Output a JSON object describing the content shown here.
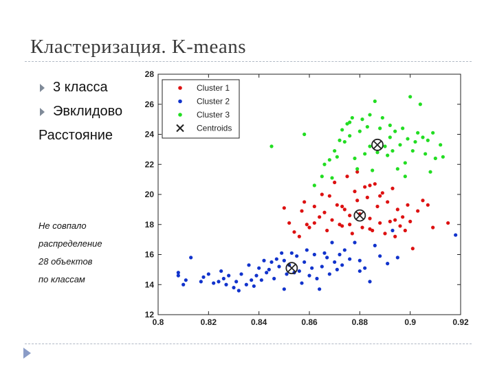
{
  "slide": {
    "title": "Кластеризация. K-means",
    "bullets": [
      "3 класса",
      "Эвклидово"
    ],
    "continuation": "Расстояние",
    "note_lines": [
      "Не совпало",
      "распределение",
      "28 объектов",
      "по классам"
    ]
  },
  "colors": {
    "cluster1": "#dd1111",
    "cluster2": "#1133cc",
    "cluster3": "#22dd22",
    "centroid": "#222222",
    "bullet_arrow": "#7f8a98"
  },
  "icons": {
    "bullet": "triangle-right-icon",
    "slide_nav": "triangle-right-icon"
  },
  "chart_data": {
    "type": "scatter",
    "xlim": [
      0.8,
      0.92
    ],
    "ylim": [
      12,
      28
    ],
    "xticks": [
      "0.8",
      "0.82",
      "0.84",
      "0.86",
      "0.88",
      "0.9",
      "0.92"
    ],
    "yticks": [
      "12",
      "14",
      "16",
      "18",
      "20",
      "22",
      "24",
      "26",
      "28"
    ],
    "legend_position": "top-left",
    "series": [
      {
        "name": "Cluster 1",
        "color": "#dd1111",
        "points": [
          [
            0.85,
            19.1
          ],
          [
            0.852,
            18.1
          ],
          [
            0.854,
            17.5
          ],
          [
            0.856,
            17.2
          ],
          [
            0.857,
            18.9
          ],
          [
            0.858,
            19.5
          ],
          [
            0.859,
            18.0
          ],
          [
            0.86,
            17.8
          ],
          [
            0.862,
            19.2
          ],
          [
            0.864,
            18.5
          ],
          [
            0.865,
            20.0
          ],
          [
            0.866,
            18.8
          ],
          [
            0.867,
            17.6
          ],
          [
            0.868,
            19.9
          ],
          [
            0.869,
            18.3
          ],
          [
            0.87,
            20.8
          ],
          [
            0.871,
            19.3
          ],
          [
            0.872,
            18.0
          ],
          [
            0.873,
            17.9
          ],
          [
            0.874,
            19.0
          ],
          [
            0.875,
            21.2
          ],
          [
            0.876,
            18.6
          ],
          [
            0.877,
            17.4
          ],
          [
            0.878,
            20.2
          ],
          [
            0.879,
            19.6
          ],
          [
            0.88,
            18.7
          ],
          [
            0.881,
            17.8
          ],
          [
            0.882,
            20.5
          ],
          [
            0.883,
            19.8
          ],
          [
            0.884,
            18.4
          ],
          [
            0.885,
            17.6
          ],
          [
            0.886,
            20.7
          ],
          [
            0.887,
            19.2
          ],
          [
            0.888,
            18.1
          ],
          [
            0.889,
            20.1
          ],
          [
            0.89,
            17.4
          ],
          [
            0.891,
            19.5
          ],
          [
            0.892,
            18.2
          ],
          [
            0.893,
            20.4
          ],
          [
            0.894,
            17.2
          ],
          [
            0.895,
            19.0
          ],
          [
            0.896,
            17.9
          ],
          [
            0.897,
            18.5
          ],
          [
            0.898,
            17.6
          ],
          [
            0.899,
            19.3
          ],
          [
            0.9,
            18.2
          ],
          [
            0.901,
            16.4
          ],
          [
            0.903,
            18.9
          ],
          [
            0.905,
            19.6
          ],
          [
            0.907,
            19.3
          ],
          [
            0.909,
            17.8
          ],
          [
            0.915,
            18.1
          ],
          [
            0.884,
            20.6
          ],
          [
            0.879,
            21.5
          ],
          [
            0.873,
            19.2
          ],
          [
            0.862,
            18.1
          ],
          [
            0.876,
            18.0
          ],
          [
            0.884,
            17.7
          ],
          [
            0.888,
            19.9
          ],
          [
            0.894,
            18.3
          ]
        ]
      },
      {
        "name": "Cluster 2",
        "color": "#1133cc",
        "points": [
          [
            0.808,
            14.6
          ],
          [
            0.808,
            14.8
          ],
          [
            0.81,
            14.0
          ],
          [
            0.811,
            14.3
          ],
          [
            0.813,
            15.8
          ],
          [
            0.817,
            14.2
          ],
          [
            0.818,
            14.5
          ],
          [
            0.82,
            14.7
          ],
          [
            0.822,
            14.1
          ],
          [
            0.824,
            14.2
          ],
          [
            0.825,
            14.9
          ],
          [
            0.826,
            14.4
          ],
          [
            0.827,
            14.0
          ],
          [
            0.828,
            14.6
          ],
          [
            0.83,
            13.8
          ],
          [
            0.831,
            14.2
          ],
          [
            0.832,
            13.6
          ],
          [
            0.833,
            14.7
          ],
          [
            0.835,
            14.0
          ],
          [
            0.836,
            15.3
          ],
          [
            0.837,
            14.3
          ],
          [
            0.838,
            13.9
          ],
          [
            0.839,
            14.6
          ],
          [
            0.84,
            15.1
          ],
          [
            0.841,
            14.3
          ],
          [
            0.842,
            15.6
          ],
          [
            0.843,
            14.8
          ],
          [
            0.844,
            15.0
          ],
          [
            0.845,
            15.5
          ],
          [
            0.846,
            14.4
          ],
          [
            0.847,
            15.7
          ],
          [
            0.848,
            15.2
          ],
          [
            0.849,
            16.1
          ],
          [
            0.85,
            15.6
          ],
          [
            0.851,
            14.7
          ],
          [
            0.852,
            15.3
          ],
          [
            0.853,
            16.1
          ],
          [
            0.854,
            14.8
          ],
          [
            0.855,
            15.9
          ],
          [
            0.856,
            14.9
          ],
          [
            0.857,
            14.1
          ],
          [
            0.858,
            15.5
          ],
          [
            0.859,
            16.3
          ],
          [
            0.86,
            14.6
          ],
          [
            0.861,
            15.1
          ],
          [
            0.862,
            16.0
          ],
          [
            0.863,
            14.4
          ],
          [
            0.864,
            13.7
          ],
          [
            0.865,
            15.2
          ],
          [
            0.866,
            16.1
          ],
          [
            0.867,
            15.8
          ],
          [
            0.868,
            14.7
          ],
          [
            0.869,
            16.8
          ],
          [
            0.87,
            15.5
          ],
          [
            0.871,
            15.0
          ],
          [
            0.872,
            16.0
          ],
          [
            0.873,
            15.3
          ],
          [
            0.874,
            16.3
          ],
          [
            0.876,
            15.7
          ],
          [
            0.878,
            16.8
          ],
          [
            0.88,
            15.6
          ],
          [
            0.882,
            15.1
          ],
          [
            0.884,
            14.2
          ],
          [
            0.886,
            16.6
          ],
          [
            0.888,
            15.9
          ],
          [
            0.891,
            15.4
          ],
          [
            0.893,
            17.6
          ],
          [
            0.895,
            15.8
          ],
          [
            0.918,
            17.3
          ],
          [
            0.88,
            14.9
          ],
          [
            0.85,
            13.7
          ]
        ]
      },
      {
        "name": "Cluster 3",
        "color": "#22dd22",
        "points": [
          [
            0.845,
            23.2
          ],
          [
            0.858,
            24.0
          ],
          [
            0.862,
            20.6
          ],
          [
            0.865,
            21.2
          ],
          [
            0.866,
            22.0
          ],
          [
            0.868,
            22.3
          ],
          [
            0.869,
            21.1
          ],
          [
            0.87,
            22.9
          ],
          [
            0.871,
            22.5
          ],
          [
            0.872,
            23.6
          ],
          [
            0.873,
            24.3
          ],
          [
            0.874,
            23.5
          ],
          [
            0.875,
            24.7
          ],
          [
            0.876,
            23.9
          ],
          [
            0.877,
            25.1
          ],
          [
            0.878,
            22.4
          ],
          [
            0.879,
            21.7
          ],
          [
            0.88,
            24.2
          ],
          [
            0.881,
            25.0
          ],
          [
            0.882,
            22.7
          ],
          [
            0.883,
            24.5
          ],
          [
            0.884,
            23.2
          ],
          [
            0.885,
            21.6
          ],
          [
            0.886,
            26.2
          ],
          [
            0.887,
            22.8
          ],
          [
            0.888,
            24.4
          ],
          [
            0.889,
            25.1
          ],
          [
            0.89,
            23.2
          ],
          [
            0.891,
            22.6
          ],
          [
            0.892,
            23.8
          ],
          [
            0.893,
            22.9
          ],
          [
            0.894,
            24.2
          ],
          [
            0.895,
            21.7
          ],
          [
            0.896,
            23.3
          ],
          [
            0.897,
            24.4
          ],
          [
            0.898,
            22.1
          ],
          [
            0.899,
            23.7
          ],
          [
            0.9,
            26.5
          ],
          [
            0.901,
            22.9
          ],
          [
            0.902,
            23.5
          ],
          [
            0.903,
            24.1
          ],
          [
            0.904,
            26.0
          ],
          [
            0.905,
            23.8
          ],
          [
            0.906,
            22.7
          ],
          [
            0.907,
            23.6
          ],
          [
            0.908,
            21.5
          ],
          [
            0.909,
            24.1
          ],
          [
            0.91,
            22.4
          ],
          [
            0.912,
            23.3
          ],
          [
            0.913,
            22.5
          ],
          [
            0.898,
            21.2
          ],
          [
            0.884,
            25.3
          ],
          [
            0.876,
            24.8
          ],
          [
            0.892,
            24.6
          ]
        ]
      }
    ],
    "centroids": {
      "name": "Centroids",
      "points": [
        [
          0.853,
          15.1
        ],
        [
          0.88,
          18.6
        ],
        [
          0.887,
          23.3
        ]
      ]
    }
  }
}
